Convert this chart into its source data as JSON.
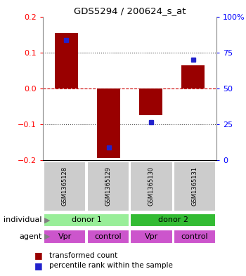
{
  "title": "GDS5294 / 200624_s_at",
  "bar_values": [
    0.155,
    -0.195,
    -0.075,
    0.065
  ],
  "percentile_values": [
    0.135,
    -0.165,
    -0.095,
    0.08
  ],
  "categories": [
    "GSM1365128",
    "GSM1365129",
    "GSM1365130",
    "GSM1365131"
  ],
  "bar_color": "#990000",
  "percentile_color": "#2222cc",
  "ylim_left": [
    -0.2,
    0.2
  ],
  "ylim_right": [
    0,
    100
  ],
  "yticks_left": [
    -0.2,
    -0.1,
    0,
    0.1,
    0.2
  ],
  "yticks_right": [
    0,
    25,
    50,
    75,
    100
  ],
  "ytick_labels_right": [
    "0",
    "25",
    "50",
    "75",
    "100%"
  ],
  "hline_zero_color": "#cc0000",
  "hline_dotted_color": "#444444",
  "donor1_color": "#99ee99",
  "donor2_color": "#33bb33",
  "agent_color": "#cc55cc",
  "sample_label_bg": "#cccccc",
  "individual_row": [
    [
      "donor 1",
      0,
      2
    ],
    [
      "donor 2",
      2,
      4
    ]
  ],
  "agent_row": [
    [
      "Vpr",
      0,
      1
    ],
    [
      "control",
      1,
      2
    ],
    [
      "Vpr",
      2,
      3
    ],
    [
      "control",
      3,
      4
    ]
  ],
  "legend_items": [
    "transformed count",
    "percentile rank within the sample"
  ],
  "bar_width": 0.55,
  "x_positions": [
    0,
    1,
    2,
    3
  ]
}
